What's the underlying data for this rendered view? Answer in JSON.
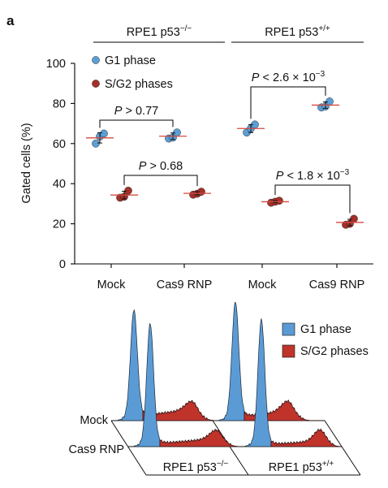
{
  "panel_label": "a",
  "chart_data": [
    {
      "type": "scatter",
      "group_labels": [
        {
          "base": "RPE1 p53",
          "sup": "−/−"
        },
        {
          "base": "RPE1 p53",
          "sup": "+/+"
        }
      ],
      "categories": [
        "Mock",
        "Cas9 RNP",
        "Mock",
        "Cas9 RNP"
      ],
      "category_group": [
        0,
        0,
        1,
        1
      ],
      "ylabel": "Gated cells (%)",
      "ylim": [
        0,
        100
      ],
      "yticks": [
        0,
        20,
        40,
        60,
        80,
        100
      ],
      "grid": false,
      "legend_position": "top-left",
      "mean_line_color": "#d24a40",
      "series": [
        {
          "name": "G1 phase",
          "color": "#5b9fd6",
          "values": [
            [
              60,
              63.5,
              65
            ],
            [
              62.5,
              63,
              65.5
            ],
            [
              65.5,
              67.5,
              69.5
            ],
            [
              78,
              78.5,
              81
            ]
          ]
        },
        {
          "name": "S/G2 phases",
          "color": "#a62f28",
          "values": [
            [
              33,
              33.5,
              36.5
            ],
            [
              34.5,
              35,
              36
            ],
            [
              30.5,
              31,
              31.5
            ],
            [
              19.5,
              20,
              22.5
            ]
          ]
        }
      ],
      "annotations": [
        {
          "series": 0,
          "between": [
            0,
            1
          ],
          "italic": "P",
          "text": " > 0.77",
          "exponent": ""
        },
        {
          "series": 1,
          "between": [
            0,
            1
          ],
          "italic": "P",
          "text": " > 0.68",
          "exponent": ""
        },
        {
          "series": 0,
          "between": [
            2,
            3
          ],
          "italic": "P",
          "text": " < 2.6 × 10",
          "exponent": "−3"
        },
        {
          "series": 1,
          "between": [
            2,
            3
          ],
          "italic": "P",
          "text": " < 1.8 × 10",
          "exponent": "−3"
        }
      ]
    },
    {
      "type": "area",
      "rows": [
        "Mock",
        "Cas9 RNP"
      ],
      "columns": [
        {
          "base": "RPE1 p53",
          "sup": "−/−"
        },
        {
          "base": "RPE1 p53",
          "sup": "+/+"
        }
      ],
      "legend_position": "top-right",
      "series": [
        {
          "name": "G1 phase",
          "color": "#5b9bd5"
        },
        {
          "name": "S/G2 phases",
          "color": "#c0332b"
        }
      ]
    }
  ]
}
